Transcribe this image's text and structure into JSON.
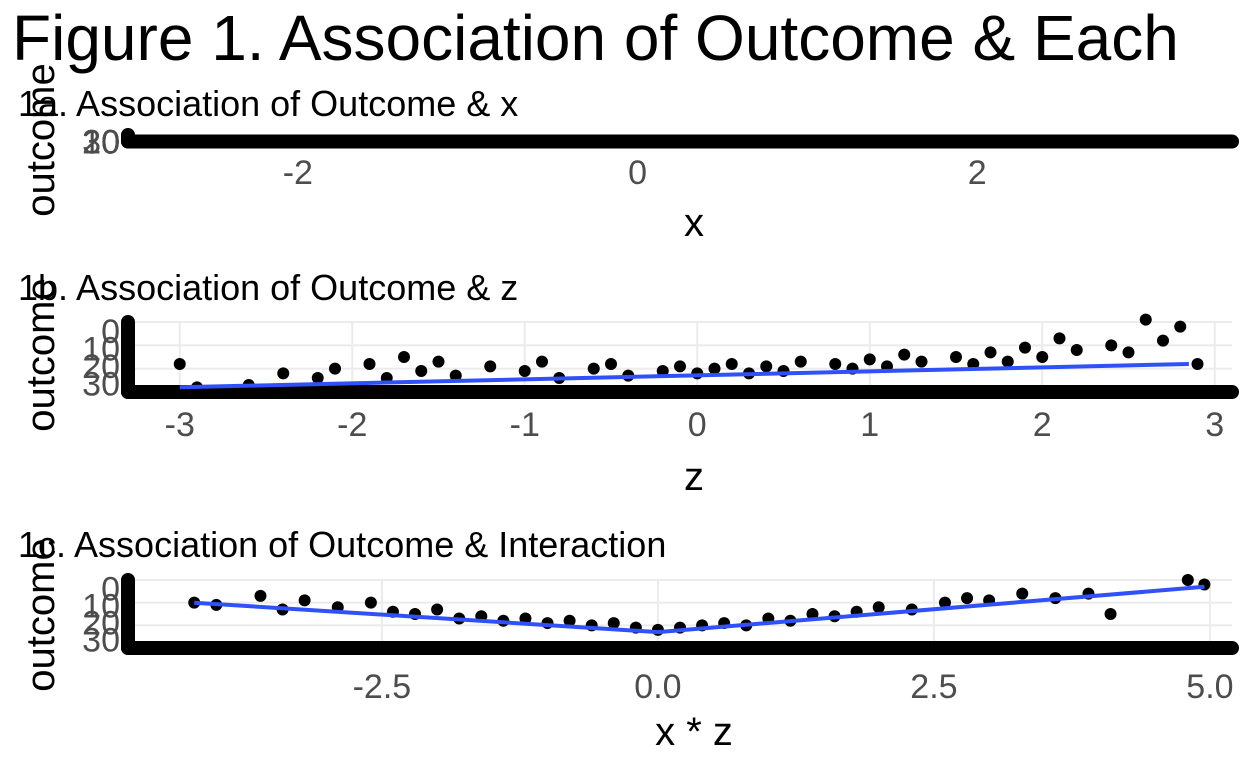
{
  "figure_title": "Figure 1. Association of Outcome & Each",
  "chart_data": [
    {
      "type": "scatter",
      "title": "1a. Association of Outcome & x",
      "xlabel": "x",
      "ylabel": "outcome",
      "xlim": [
        -3.0,
        3.5
      ],
      "ylim": [
        -1,
        1
      ],
      "xticks": [
        -2,
        0,
        2
      ],
      "xtick_labels": [
        "-2",
        "0",
        "2"
      ],
      "yticks": [
        0,
        10,
        20,
        30
      ],
      "ytick_labels": [
        "0",
        "10",
        "20",
        "30"
      ],
      "points": [
        [
          -3.0,
          0
        ],
        [
          -2.7,
          0
        ],
        [
          -2.4,
          0
        ],
        [
          -2.1,
          0
        ],
        [
          -1.8,
          0
        ],
        [
          -1.5,
          0
        ],
        [
          -1.2,
          0
        ],
        [
          -0.9,
          0
        ],
        [
          -0.6,
          0
        ],
        [
          -0.3,
          0
        ],
        [
          0.0,
          0
        ],
        [
          0.3,
          0
        ],
        [
          0.6,
          0
        ],
        [
          0.9,
          0
        ],
        [
          1.2,
          0
        ],
        [
          1.5,
          0
        ],
        [
          1.8,
          0
        ],
        [
          2.1,
          0
        ],
        [
          2.4,
          0
        ],
        [
          2.7,
          0
        ],
        [
          3.0,
          0
        ],
        [
          3.3,
          0
        ],
        [
          3.5,
          0
        ]
      ],
      "grid": true,
      "legend": "none"
    },
    {
      "type": "scatter",
      "title": "1b. Association of Outcome & z",
      "xlabel": "z",
      "ylabel": "outcome",
      "xlim": [
        -3.3,
        3.1
      ],
      "ylim": [
        0,
        30
      ],
      "xticks": [
        -3,
        -2,
        -1,
        0,
        1,
        2,
        3
      ],
      "xtick_labels": [
        "-3",
        "-2",
        "-1",
        "0",
        "1",
        "2",
        "3"
      ],
      "yticks": [
        0,
        10,
        20,
        30
      ],
      "ytick_labels": [
        "0",
        "10",
        "20",
        "30"
      ],
      "points": [
        [
          -3.0,
          12
        ],
        [
          -2.9,
          2
        ],
        [
          -2.6,
          3
        ],
        [
          -2.4,
          8
        ],
        [
          -2.2,
          6
        ],
        [
          -2.1,
          10
        ],
        [
          -1.9,
          12
        ],
        [
          -1.8,
          6
        ],
        [
          -1.7,
          15
        ],
        [
          -1.6,
          9
        ],
        [
          -1.5,
          13
        ],
        [
          -1.4,
          7
        ],
        [
          -1.2,
          11
        ],
        [
          -1.0,
          9
        ],
        [
          -0.9,
          13
        ],
        [
          -0.8,
          6
        ],
        [
          -0.6,
          10
        ],
        [
          -0.5,
          12
        ],
        [
          -0.4,
          7
        ],
        [
          -0.2,
          9
        ],
        [
          -0.1,
          11
        ],
        [
          0.0,
          8
        ],
        [
          0.1,
          10
        ],
        [
          0.2,
          12
        ],
        [
          0.3,
          8
        ],
        [
          0.4,
          11
        ],
        [
          0.5,
          9
        ],
        [
          0.6,
          13
        ],
        [
          0.8,
          12
        ],
        [
          0.9,
          10
        ],
        [
          1.0,
          14
        ],
        [
          1.1,
          11
        ],
        [
          1.2,
          16
        ],
        [
          1.3,
          13
        ],
        [
          1.5,
          15
        ],
        [
          1.6,
          12
        ],
        [
          1.7,
          17
        ],
        [
          1.8,
          13
        ],
        [
          1.9,
          19
        ],
        [
          2.0,
          15
        ],
        [
          2.1,
          23
        ],
        [
          2.2,
          18
        ],
        [
          2.4,
          20
        ],
        [
          2.5,
          17
        ],
        [
          2.6,
          31
        ],
        [
          2.7,
          22
        ],
        [
          2.8,
          28
        ],
        [
          2.9,
          12
        ]
      ],
      "trend": [
        [
          -3.0,
          2
        ],
        [
          2.85,
          12
        ]
      ],
      "grid": true,
      "legend": "none"
    },
    {
      "type": "scatter",
      "title": "1c. Association of Outcome & Interaction",
      "xlabel": "x * z",
      "ylabel": "outcome",
      "xlim": [
        -4.8,
        5.2
      ],
      "ylim": [
        0,
        30
      ],
      "xticks": [
        -2.5,
        0.0,
        2.5,
        5.0
      ],
      "xtick_labels": [
        "-2.5",
        "0.0",
        "2.5",
        "5.0"
      ],
      "yticks": [
        0,
        10,
        20,
        30
      ],
      "ytick_labels": [
        "0",
        "10",
        "20",
        "30"
      ],
      "points": [
        [
          -4.2,
          20
        ],
        [
          -4.0,
          19
        ],
        [
          -3.6,
          23
        ],
        [
          -3.4,
          17
        ],
        [
          -3.2,
          21
        ],
        [
          -2.9,
          18
        ],
        [
          -2.6,
          20
        ],
        [
          -2.4,
          16
        ],
        [
          -2.2,
          15
        ],
        [
          -2.0,
          17
        ],
        [
          -1.8,
          13
        ],
        [
          -1.6,
          14
        ],
        [
          -1.4,
          12
        ],
        [
          -1.2,
          13
        ],
        [
          -1.0,
          11
        ],
        [
          -0.8,
          12
        ],
        [
          -0.6,
          10
        ],
        [
          -0.4,
          11
        ],
        [
          -0.2,
          9
        ],
        [
          0.0,
          8
        ],
        [
          0.2,
          9
        ],
        [
          0.4,
          10
        ],
        [
          0.6,
          11
        ],
        [
          0.8,
          10
        ],
        [
          1.0,
          13
        ],
        [
          1.2,
          12
        ],
        [
          1.4,
          15
        ],
        [
          1.6,
          14
        ],
        [
          1.8,
          16
        ],
        [
          2.0,
          18
        ],
        [
          2.3,
          17
        ],
        [
          2.6,
          20
        ],
        [
          2.8,
          22
        ],
        [
          3.0,
          21
        ],
        [
          3.3,
          24
        ],
        [
          3.6,
          22
        ],
        [
          3.9,
          24
        ],
        [
          4.1,
          15
        ],
        [
          4.8,
          30
        ],
        [
          4.95,
          28
        ]
      ],
      "trend": [
        [
          -4.2,
          20
        ],
        [
          0.0,
          7
        ],
        [
          4.95,
          27
        ]
      ],
      "grid": true,
      "legend": "none"
    }
  ],
  "colors": {
    "points": "#000000",
    "trend": "#3050f8",
    "grid": "#ebebeb",
    "tick_text": "#4d4d4d"
  }
}
